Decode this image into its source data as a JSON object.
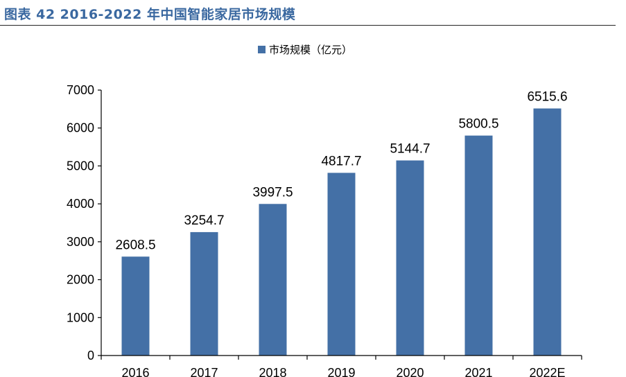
{
  "figure": {
    "title": "图表 42 2016-2022 年中国智能家居市场规模"
  },
  "colors": {
    "title": "#3a68a0",
    "bar": "#4470a6",
    "axis": "#000000"
  },
  "chart_data": {
    "type": "bar",
    "categories": [
      "2016",
      "2017",
      "2018",
      "2019",
      "2020",
      "2021",
      "2022E"
    ],
    "series": [
      {
        "name": "市场规模（亿元）",
        "values": [
          2608.5,
          3254.7,
          3997.5,
          4817.7,
          5144.7,
          5800.5,
          6515.6
        ]
      }
    ],
    "data_labels": [
      "2608.5",
      "3254.7",
      "3997.5",
      "4817.7",
      "5144.7",
      "5800.5",
      "6515.6"
    ],
    "y_ticks": [
      "0",
      "1000",
      "2000",
      "3000",
      "4000",
      "5000",
      "6000",
      "7000"
    ],
    "ylim": [
      0,
      7000
    ],
    "xlabel": "",
    "ylabel": "",
    "legend_position": "top-center",
    "grid": false
  }
}
